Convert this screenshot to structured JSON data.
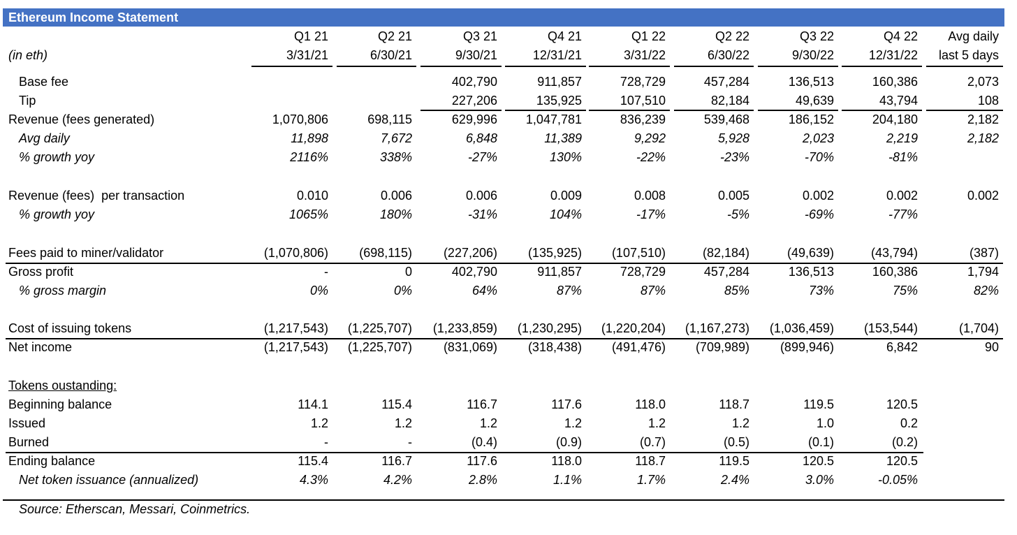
{
  "title": "Ethereum Income Statement",
  "unit_label": "(in eth)",
  "columns": [
    {
      "q": "Q1 21",
      "date": "3/31/21"
    },
    {
      "q": "Q2 21",
      "date": "6/30/21"
    },
    {
      "q": "Q3 21",
      "date": "9/30/21"
    },
    {
      "q": "Q4 21",
      "date": "12/31/21"
    },
    {
      "q": "Q1 22",
      "date": "3/31/22"
    },
    {
      "q": "Q2 22",
      "date": "6/30/22"
    },
    {
      "q": "Q3 22",
      "date": "9/30/22"
    },
    {
      "q": "Q4 22",
      "date": "12/31/22"
    },
    {
      "q": "Avg daily",
      "date": "last 5 days"
    }
  ],
  "rows": [
    {
      "label": "Base fee",
      "indent": true,
      "italic": false,
      "values": [
        "",
        "",
        "402,790",
        "911,857",
        "728,729",
        "457,284",
        "136,513",
        "160,386",
        "2,073"
      ]
    },
    {
      "label": "Tip",
      "indent": true,
      "italic": false,
      "values": [
        "",
        "",
        "227,206",
        "135,925",
        "107,510",
        "82,184",
        "49,639",
        "43,794",
        "108"
      ]
    },
    {
      "label": "Revenue (fees generated)",
      "indent": false,
      "italic": false,
      "values": [
        "1,070,806",
        "698,115",
        "629,996",
        "1,047,781",
        "836,239",
        "539,468",
        "186,152",
        "204,180",
        "2,182"
      ]
    },
    {
      "label": "Avg daily",
      "indent": true,
      "italic": true,
      "values": [
        "11,898",
        "7,672",
        "6,848",
        "11,389",
        "9,292",
        "5,928",
        "2,023",
        "2,219",
        "2,182"
      ]
    },
    {
      "label": "% growth yoy",
      "indent": true,
      "italic": true,
      "values": [
        "2116%",
        "338%",
        "-27%",
        "130%",
        "-22%",
        "-23%",
        "-70%",
        "-81%",
        ""
      ]
    },
    {
      "label": "Revenue (fees)  per transaction",
      "indent": false,
      "italic": false,
      "values": [
        "0.010",
        "0.006",
        "0.006",
        "0.009",
        "0.008",
        "0.005",
        "0.002",
        "0.002",
        "0.002"
      ]
    },
    {
      "label": "% growth yoy",
      "indent": true,
      "italic": true,
      "values": [
        "1065%",
        "180%",
        "-31%",
        "104%",
        "-17%",
        "-5%",
        "-69%",
        "-77%",
        ""
      ]
    },
    {
      "label": "Fees paid to miner/validator",
      "indent": false,
      "italic": false,
      "values": [
        "(1,070,806)",
        "(698,115)",
        "(227,206)",
        "(135,925)",
        "(107,510)",
        "(82,184)",
        "(49,639)",
        "(43,794)",
        "(387)"
      ]
    },
    {
      "label": "Gross profit",
      "indent": false,
      "italic": false,
      "values": [
        "-",
        "0",
        "402,790",
        "911,857",
        "728,729",
        "457,284",
        "136,513",
        "160,386",
        "1,794"
      ]
    },
    {
      "label": "% gross margin",
      "indent": true,
      "italic": true,
      "values": [
        "0%",
        "0%",
        "64%",
        "87%",
        "87%",
        "85%",
        "73%",
        "75%",
        "82%"
      ]
    },
    {
      "label": "Cost of issuing tokens",
      "indent": false,
      "italic": false,
      "values": [
        "(1,217,543)",
        "(1,225,707)",
        "(1,233,859)",
        "(1,230,295)",
        "(1,220,204)",
        "(1,167,273)",
        "(1,036,459)",
        "(153,544)",
        "(1,704)"
      ]
    },
    {
      "label": "Net income",
      "indent": false,
      "italic": false,
      "values": [
        "(1,217,543)",
        "(1,225,707)",
        "(831,069)",
        "(318,438)",
        "(491,476)",
        "(709,989)",
        "(899,946)",
        "6,842",
        "90"
      ]
    },
    {
      "label": "Tokens oustanding:",
      "indent": false,
      "italic": false,
      "underline": true,
      "values": [
        "",
        "",
        "",
        "",
        "",
        "",
        "",
        "",
        ""
      ]
    },
    {
      "label": "Beginning balance",
      "indent": false,
      "italic": false,
      "values": [
        "114.1",
        "115.4",
        "116.7",
        "117.6",
        "118.0",
        "118.7",
        "119.5",
        "120.5",
        ""
      ]
    },
    {
      "label": "Issued",
      "indent": false,
      "italic": false,
      "values": [
        "1.2",
        "1.2",
        "1.2",
        "1.2",
        "1.2",
        "1.2",
        "1.0",
        "0.2",
        ""
      ]
    },
    {
      "label": "Burned",
      "indent": false,
      "italic": false,
      "values": [
        "-",
        "-",
        "(0.4)",
        "(0.9)",
        "(0.7)",
        "(0.5)",
        "(0.1)",
        "(0.2)",
        ""
      ]
    },
    {
      "label": "Ending balance",
      "indent": false,
      "italic": false,
      "values": [
        "115.4",
        "116.7",
        "117.6",
        "118.0",
        "118.7",
        "119.5",
        "120.5",
        "120.5",
        ""
      ]
    },
    {
      "label": "Net token issuance (annualized)",
      "indent": true,
      "italic": true,
      "values": [
        "4.3%",
        "4.2%",
        "2.8%",
        "1.1%",
        "1.7%",
        "2.4%",
        "3.0%",
        "-0.05%",
        ""
      ]
    }
  ],
  "source": "Source: Etherscan, Messari, Coinmetrics."
}
